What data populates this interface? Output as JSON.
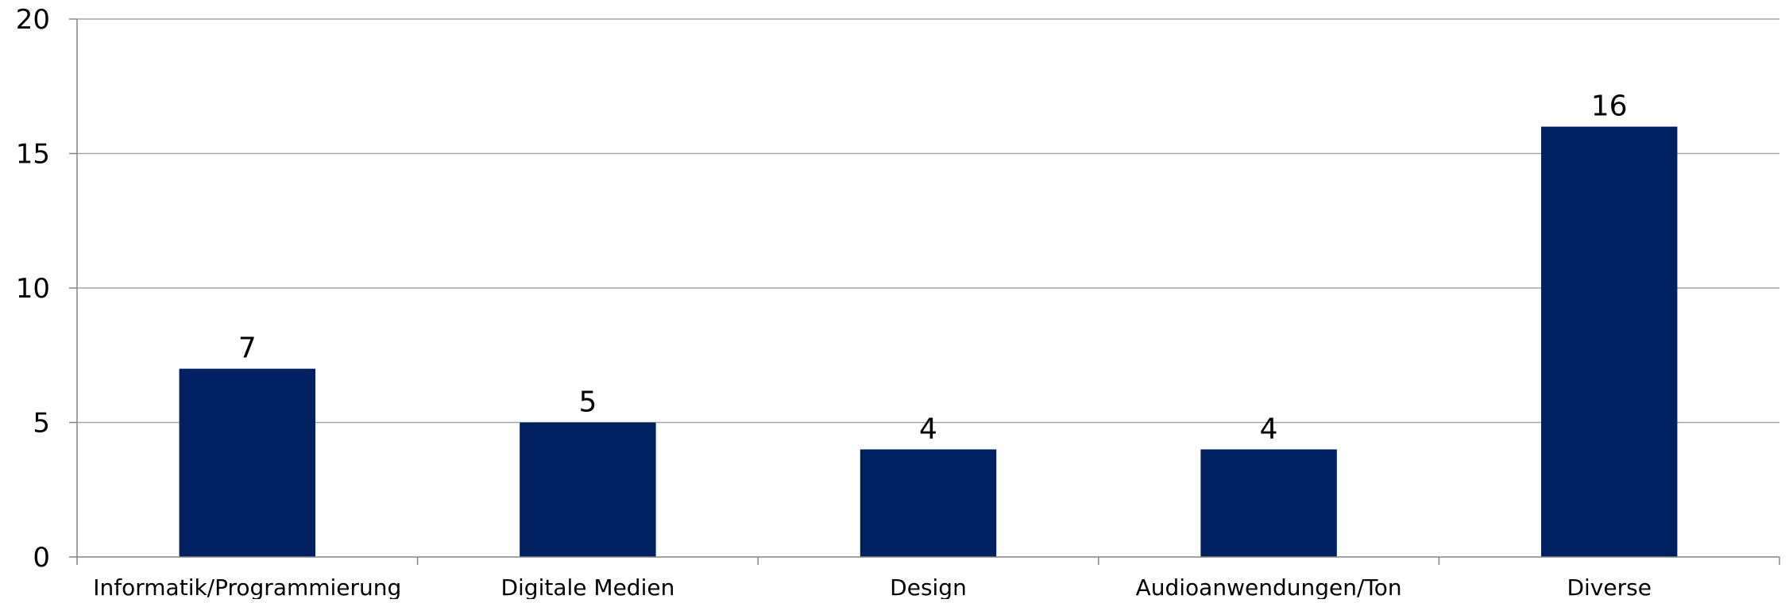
{
  "chart_data": {
    "type": "bar",
    "title": "",
    "xlabel": "",
    "ylabel": "",
    "categories": [
      "Informatik/Programmierung",
      "Digitale Medien",
      "Design",
      "Audioanwendungen/Ton",
      "Diverse"
    ],
    "values": [
      7,
      5,
      4,
      4,
      16
    ],
    "ylim": [
      0,
      20
    ],
    "yticks": [
      "0",
      "5",
      "10",
      "15",
      "20"
    ],
    "data_labels": [
      "7",
      "5",
      "4",
      "4",
      "16"
    ],
    "grid": true,
    "legend": "none",
    "bar_color": "#002060"
  }
}
